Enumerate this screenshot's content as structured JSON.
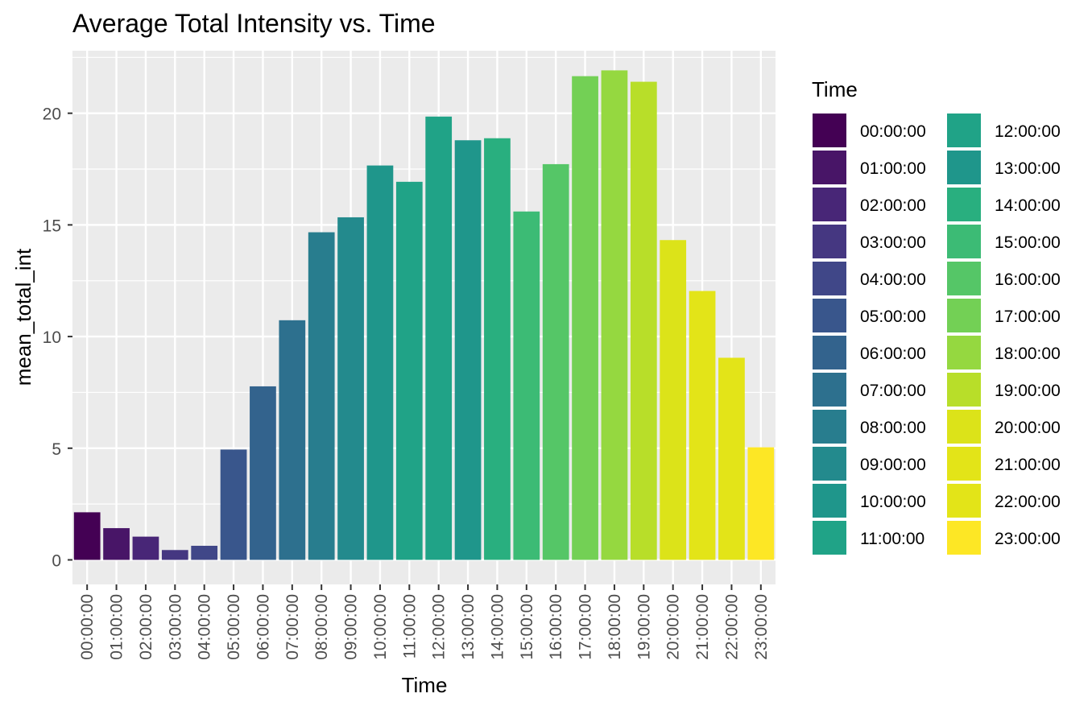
{
  "chart_data": {
    "type": "bar",
    "title": "Average Total Intensity vs. Time",
    "xlabel": "Time",
    "ylabel": "mean_total_int",
    "ylim": [
      -1.1,
      22.8
    ],
    "yticks": [
      0,
      5,
      10,
      15,
      20
    ],
    "grid": true,
    "panel_background": "#EBEBEB",
    "legend": {
      "title": "Time",
      "placement": "right",
      "columns": 2
    },
    "categories": [
      "00:00:00",
      "01:00:00",
      "02:00:00",
      "03:00:00",
      "04:00:00",
      "05:00:00",
      "06:00:00",
      "07:00:00",
      "08:00:00",
      "09:00:00",
      "10:00:00",
      "11:00:00",
      "12:00:00",
      "13:00:00",
      "14:00:00",
      "15:00:00",
      "16:00:00",
      "17:00:00",
      "18:00:00",
      "19:00:00",
      "20:00:00",
      "21:00:00",
      "22:00:00",
      "23:00:00"
    ],
    "values": [
      2.13,
      1.42,
      1.04,
      0.44,
      0.63,
      4.94,
      7.77,
      10.73,
      14.67,
      15.34,
      17.66,
      16.93,
      19.85,
      18.79,
      18.88,
      15.6,
      17.72,
      21.66,
      21.92,
      21.41,
      14.32,
      12.04,
      9.05,
      5.04
    ],
    "colors": [
      "#440154",
      "#481567",
      "#482677",
      "#453781",
      "#404788",
      "#39568C",
      "#33638D",
      "#2D708E",
      "#287D8E",
      "#238A8D",
      "#1F968B",
      "#20A387",
      "#20A387",
      "#1F968B",
      "#29AF7F",
      "#3CBB75",
      "#55C667",
      "#73D055",
      "#95D840",
      "#B8DE29",
      "#DCE319",
      "#E3E418",
      "#E3E418",
      "#FDE725"
    ]
  }
}
